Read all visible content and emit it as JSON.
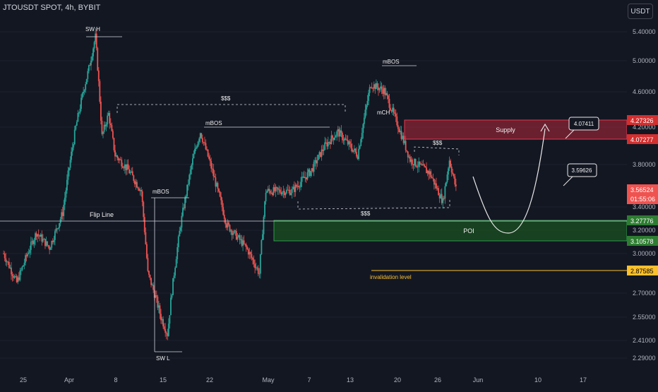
{
  "header": {
    "title": "JTOUSDT SPOT, 4h, BYBIT",
    "currency": "USDT"
  },
  "colors": {
    "background": "#131722",
    "up": "#26a69a",
    "down": "#ef5350",
    "supply": "#b2283a",
    "poi": "#1b5e20",
    "invalidation": "#fbc02d",
    "text": "#d1d4dc"
  },
  "chart_data": {
    "type": "candlestick",
    "ylim": [
      2.22,
      5.6
    ],
    "price_ticks": [
      "5.40000",
      "5.00000",
      "4.60000",
      "4.20000",
      "3.80000",
      "3.40000",
      "3.20000",
      "3.00000",
      "2.70000",
      "2.55000",
      "2.41000",
      "2.29000"
    ],
    "time_ticks": [
      "25",
      "Apr",
      "8",
      "15",
      "22",
      "May",
      "7",
      "13",
      "20",
      "26",
      "Jun",
      "10",
      "17"
    ],
    "price_path": [
      [
        "Mar 22",
        3.0
      ],
      [
        "Mar 24",
        2.78
      ],
      [
        "Mar 27",
        3.18
      ],
      [
        "Mar 29",
        3.05
      ],
      [
        "Mar 31",
        3.35
      ],
      [
        "Apr 2",
        4.2
      ],
      [
        "Apr 4",
        4.9
      ],
      [
        "Apr 5",
        5.33
      ],
      [
        "Apr 6",
        4.1
      ],
      [
        "Apr 7",
        4.35
      ],
      [
        "Apr 8",
        3.9
      ],
      [
        "Apr 10",
        3.75
      ],
      [
        "Apr 12",
        3.55
      ],
      [
        "Apr 13",
        2.85
      ],
      [
        "Apr 15",
        2.55
      ],
      [
        "Apr 16",
        2.45
      ],
      [
        "Apr 18",
        3.25
      ],
      [
        "Apr 20",
        3.9
      ],
      [
        "Apr 21",
        4.15
      ],
      [
        "Apr 23",
        3.7
      ],
      [
        "Apr 25",
        3.25
      ],
      [
        "Apr 28",
        3.05
      ],
      [
        "Apr 30",
        2.85
      ],
      [
        "May 1",
        3.55
      ],
      [
        "May 5",
        3.55
      ],
      [
        "May 8",
        3.75
      ],
      [
        "May 10",
        4.0
      ],
      [
        "May 12",
        4.15
      ],
      [
        "May 15",
        3.9
      ],
      [
        "May 17",
        4.7
      ],
      [
        "May 19",
        4.62
      ],
      [
        "May 21",
        4.25
      ],
      [
        "May 23",
        3.85
      ],
      [
        "May 26",
        3.72
      ],
      [
        "May 28",
        3.45
      ],
      [
        "May 29",
        3.85
      ],
      [
        "May 30",
        3.57
      ]
    ],
    "current_price": "3.56524",
    "countdown": "01:55:06",
    "price_labels": {
      "supply_top": "4.27326",
      "supply_bottom": "4.07277",
      "poi_top": "3.27776",
      "poi_bottom": "3.10578",
      "invalidation": "2.87585"
    },
    "callouts": [
      "4.07411",
      "3.59626"
    ],
    "annotations": {
      "sw_high": "SW H",
      "sw_low": "SW L",
      "liquidity_top": "$$$",
      "liquidity_bottom": "$$$",
      "liquidity_right": "$$$",
      "mbos_left": "mBOS",
      "mbos_mid": "mBOS",
      "mbos_top": "mBOS",
      "mch": "mCH",
      "flip_line": "Flip Line",
      "supply": "Supply",
      "poi": "POI",
      "invalidation": "invalidation level"
    }
  }
}
